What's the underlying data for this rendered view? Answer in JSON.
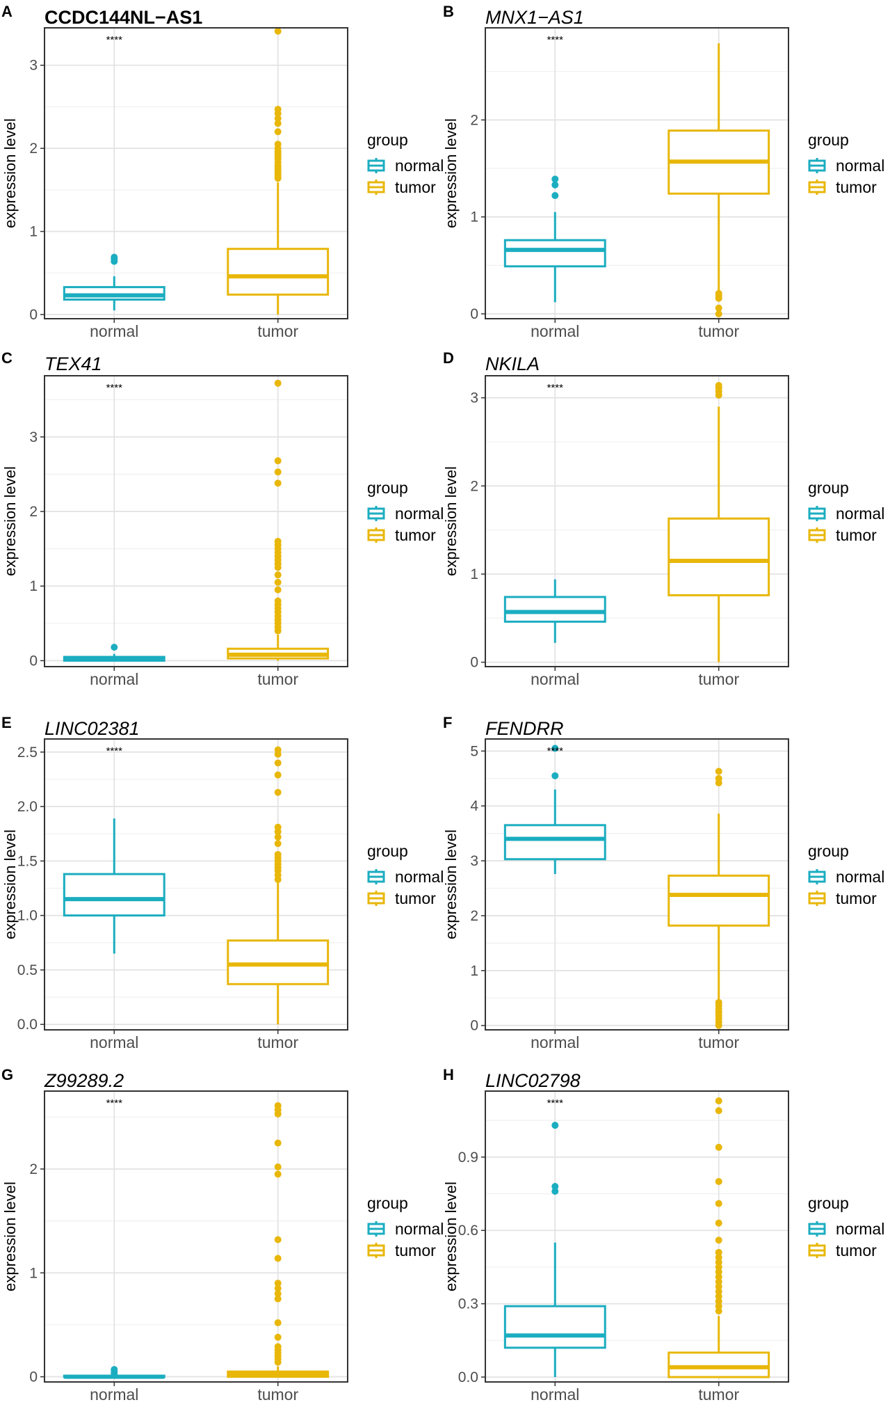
{
  "figure": {
    "legend_title": "group",
    "groups": [
      "normal",
      "tumor"
    ],
    "colors": {
      "normal": "#1BADC0",
      "tumor": "#E8B70A"
    },
    "ylabel": "expression level",
    "significance": "****"
  },
  "chart_data": [
    {
      "type": "box",
      "label": "A",
      "title": "CCDC144NL−AS1",
      "title_style": "bold",
      "categories": [
        "normal",
        "tumor"
      ],
      "xlabel": "",
      "ylabel": "expression level",
      "ylim": [
        -0.05,
        3.45
      ],
      "yticks": [
        0,
        1,
        2,
        3
      ],
      "ytick_labels": [
        "0",
        "1",
        "2",
        "3"
      ],
      "significance": "****",
      "series": [
        {
          "name": "normal",
          "q1": 0.18,
          "median": 0.23,
          "q3": 0.33,
          "whisker_low": 0.05,
          "whisker_high": 0.46,
          "outliers": [
            0.64,
            0.67,
            0.69
          ]
        },
        {
          "name": "tumor",
          "q1": 0.24,
          "median": 0.46,
          "q3": 0.79,
          "whisker_low": 0.0,
          "whisker_high": 1.59,
          "outliers": [
            1.64,
            1.67,
            1.7,
            1.73,
            1.76,
            1.79,
            1.83,
            1.87,
            1.9,
            1.93,
            1.96,
            2.0,
            2.05,
            2.2,
            2.3,
            2.36,
            2.42,
            2.47,
            3.41
          ]
        }
      ]
    },
    {
      "type": "box",
      "label": "B",
      "title": "MNX1−AS1",
      "title_style": "italic",
      "categories": [
        "normal",
        "tumor"
      ],
      "xlabel": "",
      "ylabel": "expression level",
      "ylim": [
        -0.05,
        2.95
      ],
      "yticks": [
        0,
        1,
        2
      ],
      "ytick_labels": [
        "0",
        "1",
        "2"
      ],
      "significance": "****",
      "series": [
        {
          "name": "normal",
          "q1": 0.49,
          "median": 0.66,
          "q3": 0.76,
          "whisker_low": 0.12,
          "whisker_high": 1.05,
          "outliers": [
            1.22,
            1.33,
            1.39
          ]
        },
        {
          "name": "tumor",
          "q1": 1.24,
          "median": 1.57,
          "q3": 1.89,
          "whisker_low": 0.22,
          "whisker_high": 2.79,
          "outliers": [
            0.0,
            0.06,
            0.16,
            0.19,
            0.21
          ]
        }
      ]
    },
    {
      "type": "box",
      "label": "C",
      "title": "TEX41",
      "title_style": "italic",
      "categories": [
        "normal",
        "tumor"
      ],
      "xlabel": "",
      "ylabel": "expression level",
      "ylim": [
        -0.08,
        3.82
      ],
      "yticks": [
        0,
        1,
        2,
        3
      ],
      "ytick_labels": [
        "0",
        "1",
        "2",
        "3"
      ],
      "significance": "****",
      "series": [
        {
          "name": "normal",
          "q1": 0.0,
          "median": 0.03,
          "q3": 0.05,
          "whisker_low": 0.0,
          "whisker_high": 0.09,
          "outliers": [
            0.18
          ]
        },
        {
          "name": "tumor",
          "q1": 0.03,
          "median": 0.08,
          "q3": 0.16,
          "whisker_low": 0.0,
          "whisker_high": 0.35,
          "outliers": [
            0.4,
            0.45,
            0.5,
            0.55,
            0.6,
            0.65,
            0.7,
            0.75,
            0.8,
            0.95,
            1.05,
            1.15,
            1.25,
            1.3,
            1.35,
            1.4,
            1.45,
            1.5,
            1.55,
            1.6,
            2.38,
            2.53,
            2.68,
            3.72
          ]
        }
      ]
    },
    {
      "type": "box",
      "label": "D",
      "title": "NKILA",
      "title_style": "italic",
      "categories": [
        "normal",
        "tumor"
      ],
      "xlabel": "",
      "ylabel": "expression level",
      "ylim": [
        -0.05,
        3.25
      ],
      "yticks": [
        0,
        1,
        2,
        3
      ],
      "ytick_labels": [
        "0",
        "1",
        "2",
        "3"
      ],
      "significance": "****",
      "series": [
        {
          "name": "normal",
          "q1": 0.46,
          "median": 0.57,
          "q3": 0.74,
          "whisker_low": 0.22,
          "whisker_high": 0.94,
          "outliers": []
        },
        {
          "name": "tumor",
          "q1": 0.76,
          "median": 1.15,
          "q3": 1.63,
          "whisker_low": 0.0,
          "whisker_high": 2.9,
          "outliers": [
            3.03,
            3.07,
            3.11,
            3.14
          ]
        }
      ]
    },
    {
      "type": "box",
      "label": "E",
      "title": "LINC02381",
      "title_style": "italic",
      "categories": [
        "normal",
        "tumor"
      ],
      "xlabel": "",
      "ylabel": "expression level",
      "ylim": [
        -0.05,
        2.62
      ],
      "yticks": [
        0,
        0.5,
        1,
        1.5,
        2,
        2.5
      ],
      "ytick_labels": [
        "0.0",
        "0.5",
        "1.0",
        "1.5",
        "2.0",
        "2.5"
      ],
      "significance": "****",
      "series": [
        {
          "name": "normal",
          "q1": 1.0,
          "median": 1.15,
          "q3": 1.38,
          "whisker_low": 0.65,
          "whisker_high": 1.89,
          "outliers": []
        },
        {
          "name": "tumor",
          "q1": 0.37,
          "median": 0.55,
          "q3": 0.77,
          "whisker_low": 0.0,
          "whisker_high": 1.3,
          "outliers": [
            1.33,
            1.37,
            1.41,
            1.44,
            1.47,
            1.5,
            1.53,
            1.56,
            1.66,
            1.72,
            1.77,
            1.81,
            2.13,
            2.29,
            2.4,
            2.48,
            2.52
          ]
        }
      ]
    },
    {
      "type": "box",
      "label": "F",
      "title": "FENDRR",
      "title_style": "italic",
      "categories": [
        "normal",
        "tumor"
      ],
      "xlabel": "",
      "ylabel": "expression level",
      "ylim": [
        -0.08,
        5.22
      ],
      "yticks": [
        0,
        1,
        2,
        3,
        4,
        5
      ],
      "ytick_labels": [
        "0",
        "1",
        "2",
        "3",
        "4",
        "5"
      ],
      "significance": "****",
      "series": [
        {
          "name": "normal",
          "q1": 3.03,
          "median": 3.4,
          "q3": 3.65,
          "whisker_low": 2.76,
          "whisker_high": 4.3,
          "outliers": [
            4.55,
            5.05
          ]
        },
        {
          "name": "tumor",
          "q1": 1.82,
          "median": 2.38,
          "q3": 2.73,
          "whisker_low": 0.48,
          "whisker_high": 3.86,
          "outliers": [
            0.0,
            0.06,
            0.12,
            0.18,
            0.24,
            0.3,
            0.36,
            0.42,
            4.42,
            4.5,
            4.63
          ]
        }
      ]
    },
    {
      "type": "box",
      "label": "G",
      "title": "Z99289.2",
      "title_style": "italic",
      "categories": [
        "normal",
        "tumor"
      ],
      "xlabel": "",
      "ylabel": "expression level",
      "ylim": [
        -0.05,
        2.75
      ],
      "yticks": [
        0,
        1,
        2
      ],
      "ytick_labels": [
        "0",
        "1",
        "2"
      ],
      "significance": "****",
      "series": [
        {
          "name": "normal",
          "q1": 0.0,
          "median": 0.0,
          "q3": 0.01,
          "whisker_low": 0.0,
          "whisker_high": 0.02,
          "outliers": [
            0.03,
            0.05,
            0.07
          ]
        },
        {
          "name": "tumor",
          "q1": 0.0,
          "median": 0.02,
          "q3": 0.05,
          "whisker_low": 0.0,
          "whisker_high": 0.1,
          "outliers": [
            0.14,
            0.17,
            0.2,
            0.23,
            0.26,
            0.29,
            0.38,
            0.52,
            0.75,
            0.8,
            0.85,
            0.9,
            1.14,
            1.32,
            1.95,
            2.02,
            2.25,
            2.53,
            2.57,
            2.61
          ]
        }
      ]
    },
    {
      "type": "box",
      "label": "H",
      "title": "LINC02798",
      "title_style": "italic",
      "categories": [
        "normal",
        "tumor"
      ],
      "xlabel": "",
      "ylabel": "expression level",
      "ylim": [
        -0.02,
        1.17
      ],
      "yticks": [
        0,
        0.3,
        0.6,
        0.9
      ],
      "ytick_labels": [
        "0.0",
        "0.3",
        "0.6",
        "0.9"
      ],
      "significance": "****",
      "series": [
        {
          "name": "normal",
          "q1": 0.12,
          "median": 0.17,
          "q3": 0.29,
          "whisker_low": 0.0,
          "whisker_high": 0.55,
          "outliers": [
            0.76,
            0.78,
            1.03
          ]
        },
        {
          "name": "tumor",
          "q1": 0.0,
          "median": 0.04,
          "q3": 0.1,
          "whisker_low": 0.0,
          "whisker_high": 0.25,
          "outliers": [
            0.27,
            0.29,
            0.31,
            0.33,
            0.35,
            0.37,
            0.39,
            0.41,
            0.43,
            0.45,
            0.47,
            0.49,
            0.51,
            0.56,
            0.63,
            0.71,
            0.8,
            0.94,
            1.09,
            1.13
          ]
        }
      ]
    }
  ]
}
